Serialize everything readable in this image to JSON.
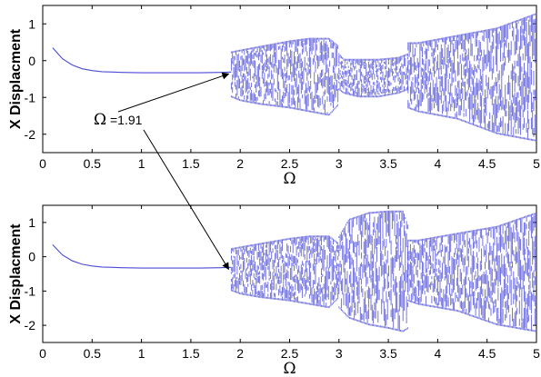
{
  "chart_data": [
    {
      "type": "scatter",
      "title": "",
      "xlabel": "Ω",
      "ylabel": "X Displacment",
      "xlim": [
        0,
        5
      ],
      "ylim": [
        -2.5,
        1.5
      ],
      "xticks": [
        "0",
        "0.5",
        "1",
        "1.5",
        "2",
        "2.5",
        "3",
        "3.5",
        "4",
        "4.5",
        "5"
      ],
      "yticks": [
        "1",
        "0",
        "-1",
        "-2"
      ],
      "series_color": "#4b4bd6",
      "periodic_branch": {
        "x": [
          0.1,
          0.15,
          0.2,
          0.3,
          0.4,
          0.5,
          0.6,
          0.8,
          1.0,
          1.2,
          1.4,
          1.6,
          1.8,
          1.91
        ],
        "y": [
          0.35,
          0.2,
          0.05,
          -0.12,
          -0.22,
          -0.27,
          -0.3,
          -0.32,
          -0.33,
          -0.33,
          -0.33,
          -0.33,
          -0.32,
          -0.31
        ]
      },
      "bands": [
        {
          "x": [
            1.91,
            2.0,
            2.2,
            2.5,
            2.7,
            2.9,
            3.0
          ],
          "upper": [
            0.25,
            0.3,
            0.4,
            0.55,
            0.62,
            0.62,
            0.4
          ],
          "lower": [
            -1.0,
            -1.1,
            -1.2,
            -1.3,
            -1.4,
            -1.5,
            -1.2
          ]
        },
        {
          "x": [
            3.0,
            3.05,
            3.2,
            3.4,
            3.6,
            3.7
          ],
          "upper": [
            0.2,
            0.05,
            0.05,
            0.05,
            0.1,
            0.2
          ],
          "lower": [
            -0.8,
            -0.9,
            -1.0,
            -1.0,
            -0.9,
            -0.8
          ]
        },
        {
          "x": [
            3.7,
            3.8,
            4.0,
            4.2,
            4.4,
            4.6,
            4.8,
            5.0
          ],
          "upper": [
            0.5,
            0.5,
            0.6,
            0.7,
            0.8,
            0.9,
            1.1,
            1.3
          ],
          "lower": [
            -1.3,
            -1.4,
            -1.5,
            -1.6,
            -1.8,
            -2.0,
            -2.1,
            -2.2
          ]
        }
      ]
    },
    {
      "type": "scatter",
      "title": "",
      "xlabel": "Ω",
      "ylabel": "X Displacment",
      "xlim": [
        0,
        5
      ],
      "ylim": [
        -2.5,
        1.5
      ],
      "xticks": [
        "0",
        "0.5",
        "1",
        "1.5",
        "2",
        "2.5",
        "3",
        "3.5",
        "4",
        "4.5",
        "5"
      ],
      "yticks": [
        "1",
        "0",
        "-1",
        "-2"
      ],
      "series_color": "#4b4bd6",
      "periodic_branch": {
        "x": [
          0.1,
          0.15,
          0.2,
          0.3,
          0.4,
          0.5,
          0.6,
          0.8,
          1.0,
          1.2,
          1.4,
          1.6,
          1.8,
          1.91
        ],
        "y": [
          0.35,
          0.2,
          0.05,
          -0.12,
          -0.22,
          -0.27,
          -0.3,
          -0.32,
          -0.33,
          -0.33,
          -0.33,
          -0.33,
          -0.32,
          -0.31
        ]
      },
      "bands": [
        {
          "x": [
            1.91,
            2.0,
            2.2,
            2.5,
            2.7,
            2.9,
            3.0
          ],
          "upper": [
            0.25,
            0.3,
            0.4,
            0.55,
            0.62,
            0.62,
            0.4
          ],
          "lower": [
            -1.0,
            -1.1,
            -1.2,
            -1.3,
            -1.4,
            -1.5,
            -1.2
          ]
        },
        {
          "x": [
            3.0,
            3.1,
            3.3,
            3.5,
            3.65,
            3.7
          ],
          "upper": [
            0.6,
            1.1,
            1.3,
            1.35,
            1.35,
            0.9
          ],
          "lower": [
            -1.5,
            -1.8,
            -2.0,
            -2.1,
            -2.2,
            -2.1
          ]
        },
        {
          "x": [
            3.7,
            3.8,
            4.0,
            4.2,
            4.4,
            4.6,
            4.8,
            5.0
          ],
          "upper": [
            0.5,
            0.5,
            0.6,
            0.7,
            0.8,
            0.9,
            1.1,
            1.3
          ],
          "lower": [
            -1.3,
            -1.4,
            -1.5,
            -1.6,
            -1.8,
            -2.0,
            -2.1,
            -2.2
          ]
        }
      ]
    }
  ],
  "annotation": {
    "omega_symbol": "Ω",
    "value_text": " =1.91",
    "points_to_x": 1.91,
    "points_to_y": -0.31
  }
}
